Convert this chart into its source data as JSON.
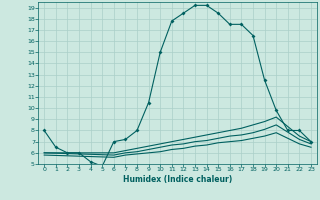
{
  "xlabel": "Humidex (Indice chaleur)",
  "ylabel": "",
  "bg_color": "#cce8e0",
  "grid_color": "#aacfc8",
  "line_color": "#006060",
  "xlim": [
    -0.5,
    23.5
  ],
  "ylim": [
    5,
    19.5
  ],
  "yticks": [
    5,
    6,
    7,
    8,
    9,
    10,
    11,
    12,
    13,
    14,
    15,
    16,
    17,
    18,
    19
  ],
  "xticks": [
    0,
    1,
    2,
    3,
    4,
    5,
    6,
    7,
    8,
    9,
    10,
    11,
    12,
    13,
    14,
    15,
    16,
    17,
    18,
    19,
    20,
    21,
    22,
    23
  ],
  "line1_x": [
    0,
    1,
    2,
    3,
    4,
    5,
    6,
    7,
    8,
    9,
    10,
    11,
    12,
    13,
    14,
    15,
    16,
    17,
    18,
    19,
    20,
    21,
    22,
    23
  ],
  "line1_y": [
    8.0,
    6.5,
    6.0,
    6.0,
    5.2,
    4.8,
    7.0,
    7.2,
    8.0,
    10.5,
    15.0,
    17.8,
    18.5,
    19.2,
    19.2,
    18.5,
    17.5,
    17.5,
    16.5,
    12.5,
    9.8,
    8.0,
    8.0,
    7.0
  ],
  "line2_x": [
    0,
    6,
    7,
    8,
    9,
    10,
    11,
    12,
    13,
    14,
    15,
    16,
    17,
    18,
    19,
    20,
    22,
    23
  ],
  "line2_y": [
    6.0,
    6.0,
    6.2,
    6.4,
    6.6,
    6.8,
    7.0,
    7.2,
    7.4,
    7.6,
    7.8,
    8.0,
    8.2,
    8.5,
    8.8,
    9.2,
    7.5,
    7.0
  ],
  "line3_x": [
    0,
    6,
    7,
    8,
    9,
    10,
    11,
    12,
    13,
    14,
    15,
    16,
    17,
    18,
    19,
    20,
    22,
    23
  ],
  "line3_y": [
    6.0,
    5.8,
    6.0,
    6.1,
    6.3,
    6.5,
    6.7,
    6.8,
    7.0,
    7.1,
    7.3,
    7.5,
    7.6,
    7.8,
    8.1,
    8.5,
    7.2,
    6.8
  ],
  "line4_x": [
    0,
    6,
    7,
    8,
    9,
    10,
    11,
    12,
    13,
    14,
    15,
    16,
    17,
    18,
    19,
    20,
    22,
    23
  ],
  "line4_y": [
    5.8,
    5.6,
    5.8,
    5.9,
    6.0,
    6.1,
    6.3,
    6.4,
    6.6,
    6.7,
    6.9,
    7.0,
    7.1,
    7.3,
    7.5,
    7.8,
    6.8,
    6.5
  ]
}
